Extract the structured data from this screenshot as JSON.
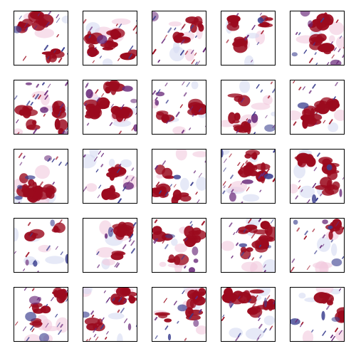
{
  "figure": {
    "rows": 5,
    "columns": 5,
    "background_color": "#ffffff",
    "border_color": "#000000",
    "palette": {
      "red": "#9b0a1e",
      "blue": "#3b3f8f",
      "purple": "#6a2a7a",
      "faint_pink": "#f2c9de",
      "faint_blue": "#d6dbf2"
    }
  }
}
